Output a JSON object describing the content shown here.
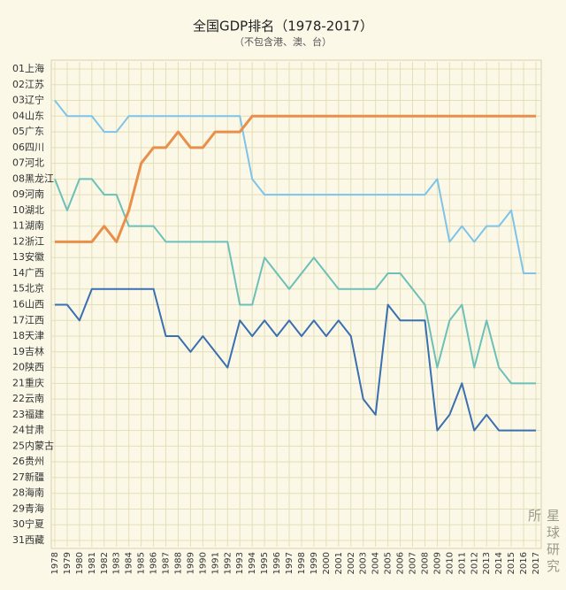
{
  "chart_data": {
    "type": "bump",
    "title": "全国GDP排名（1978-2017）",
    "subtitle": "（不包含港、澳、台）",
    "watermark": "星球研究所",
    "categories": [
      "1978",
      "1979",
      "1980",
      "1981",
      "1982",
      "1983",
      "1984",
      "1985",
      "1986",
      "1987",
      "1988",
      "1989",
      "1990",
      "1991",
      "1992",
      "1993",
      "1994",
      "1995",
      "1996",
      "1997",
      "1998",
      "1999",
      "2000",
      "2001",
      "2002",
      "2003",
      "2004",
      "2005",
      "2006",
      "2007",
      "2008",
      "2009",
      "2010",
      "2011",
      "2012",
      "2013",
      "2014",
      "2015",
      "2016",
      "2017"
    ],
    "ylim": [
      31,
      1
    ],
    "yticks": [
      {
        "value": 1,
        "label": "01上海"
      },
      {
        "value": 2,
        "label": "02江苏"
      },
      {
        "value": 3,
        "label": "03辽宁"
      },
      {
        "value": 4,
        "label": "04山东"
      },
      {
        "value": 5,
        "label": "05广东"
      },
      {
        "value": 6,
        "label": "06四川"
      },
      {
        "value": 7,
        "label": "07河北"
      },
      {
        "value": 8,
        "label": "08黑龙江"
      },
      {
        "value": 9,
        "label": "09河南"
      },
      {
        "value": 10,
        "label": "10湖北"
      },
      {
        "value": 11,
        "label": "11湖南"
      },
      {
        "value": 12,
        "label": "12浙江"
      },
      {
        "value": 13,
        "label": "13安徽"
      },
      {
        "value": 14,
        "label": "14广西"
      },
      {
        "value": 15,
        "label": "15北京"
      },
      {
        "value": 16,
        "label": "16山西"
      },
      {
        "value": 17,
        "label": "17江西"
      },
      {
        "value": 18,
        "label": "18天津"
      },
      {
        "value": 19,
        "label": "19吉林"
      },
      {
        "value": 20,
        "label": "20陕西"
      },
      {
        "value": 21,
        "label": "21重庆"
      },
      {
        "value": 22,
        "label": "22云南"
      },
      {
        "value": 23,
        "label": "23福建"
      },
      {
        "value": 24,
        "label": "24甘肃"
      },
      {
        "value": 25,
        "label": "25内蒙古"
      },
      {
        "value": 26,
        "label": "26贵州"
      },
      {
        "value": 27,
        "label": "27新疆"
      },
      {
        "value": 28,
        "label": "28海南"
      },
      {
        "value": 29,
        "label": "29青海"
      },
      {
        "value": 30,
        "label": "30宁夏"
      },
      {
        "value": 31,
        "label": "31西藏"
      }
    ],
    "grid": true,
    "series": [
      {
        "color": "#7ec3e8",
        "values": [
          3,
          4,
          4,
          4,
          5,
          5,
          4,
          4,
          4,
          4,
          4,
          4,
          4,
          4,
          4,
          4,
          8,
          9,
          9,
          9,
          9,
          9,
          9,
          9,
          9,
          9,
          9,
          9,
          9,
          9,
          9,
          8,
          12,
          11,
          12,
          11,
          11,
          10,
          14,
          14
        ]
      },
      {
        "color": "#6cc0b8",
        "values": [
          8,
          10,
          8,
          8,
          9,
          9,
          11,
          11,
          11,
          12,
          12,
          12,
          12,
          12,
          12,
          16,
          16,
          13,
          14,
          15,
          14,
          13,
          14,
          15,
          15,
          15,
          15,
          14,
          14,
          15,
          16,
          20,
          17,
          16,
          20,
          17,
          20,
          21,
          21,
          21
        ]
      },
      {
        "color": "#3a6fb0",
        "values": [
          16,
          16,
          17,
          15,
          15,
          15,
          15,
          15,
          15,
          18,
          18,
          19,
          18,
          19,
          20,
          17,
          18,
          17,
          18,
          17,
          18,
          17,
          18,
          17,
          18,
          22,
          23,
          16,
          17,
          17,
          17,
          24,
          23,
          21,
          24,
          23,
          24,
          24,
          24,
          24
        ]
      },
      {
        "color": "#e8904a",
        "values": [
          12,
          12,
          12,
          12,
          11,
          12,
          10,
          7,
          6,
          6,
          5,
          6,
          6,
          5,
          5,
          5,
          4,
          4,
          4,
          4,
          4,
          4,
          4,
          4,
          4,
          4,
          4,
          4,
          4,
          4,
          4,
          4,
          4,
          4,
          4,
          4,
          4,
          4,
          4,
          4
        ]
      }
    ]
  }
}
